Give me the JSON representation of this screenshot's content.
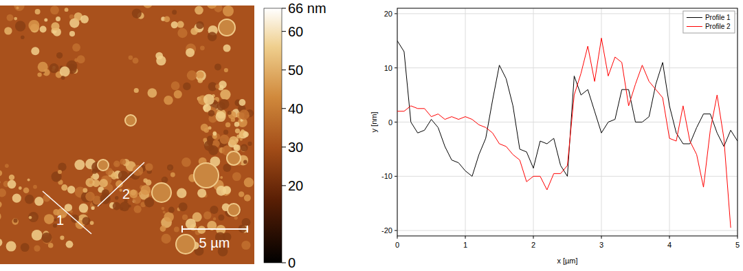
{
  "chart_data": [
    {
      "type": "image",
      "colorbar_lim": [
        0,
        66
      ],
      "colorbar_ticks": [
        0,
        20,
        30,
        40,
        50,
        60,
        {
          "value": 66,
          "label": "66 nm"
        }
      ],
      "annotations": [
        "1",
        "2"
      ],
      "scale_bar": "5 µm"
    },
    {
      "type": "line",
      "xlabel": "x [µm]",
      "ylabel": "y [nm]",
      "x": [
        0,
        0.1,
        0.2,
        0.3,
        0.4,
        0.5,
        0.6,
        0.7,
        0.8,
        0.9,
        1.0,
        1.1,
        1.2,
        1.3,
        1.4,
        1.5,
        1.6,
        1.7,
        1.8,
        1.9,
        2.0,
        2.1,
        2.2,
        2.3,
        2.4,
        2.5,
        2.6,
        2.7,
        2.8,
        2.9,
        3.0,
        3.1,
        3.2,
        3.3,
        3.4,
        3.5,
        3.6,
        3.7,
        3.8,
        3.9,
        4.0,
        4.1,
        4.2,
        4.3,
        4.4,
        4.5,
        4.6,
        4.7,
        4.8,
        4.9,
        5.0
      ],
      "series": [
        {
          "name": "Profile 1",
          "color": "#000000",
          "values": [
            15,
            13,
            0,
            -2,
            -1.5,
            0.5,
            -1,
            -4.5,
            -7,
            -7.5,
            -9,
            -10,
            -6,
            -3,
            4,
            10.5,
            8,
            3,
            -5,
            -5.5,
            -8.5,
            -3.5,
            -4,
            -3,
            -8,
            -10,
            8.5,
            5,
            6,
            2,
            -2,
            0,
            0.5,
            6,
            6,
            0,
            0,
            1,
            7,
            11,
            3,
            -2,
            -4,
            -4,
            -1,
            1.5,
            1.5,
            -2,
            -4.5,
            -1.5,
            -3.5
          ]
        },
        {
          "name": "Profile 2",
          "color": "#ff0000",
          "values": [
            2,
            2,
            3,
            2.5,
            2.5,
            1,
            1.5,
            0.5,
            1,
            0.5,
            1,
            0.5,
            -0.5,
            -1,
            -2,
            -4,
            -4.5,
            -6,
            -7,
            -11,
            -10,
            -10,
            -12.5,
            -9.5,
            -9.5,
            -8,
            5,
            9,
            14,
            7.5,
            15.5,
            8.5,
            12,
            11,
            3,
            7,
            10.5,
            7.5,
            6,
            4.5,
            -3,
            -3.5,
            3,
            -3.5,
            -6,
            -12,
            -1.5,
            5,
            -3,
            -19.5,
            null
          ]
        }
      ],
      "xlim": [
        0,
        5
      ],
      "xticks": [
        0,
        1,
        2,
        3,
        4,
        5
      ],
      "ylim": [
        -21,
        21
      ],
      "yticks": [
        -20,
        -10,
        0,
        10,
        20
      ],
      "grid": true,
      "legend": "upper right"
    }
  ]
}
